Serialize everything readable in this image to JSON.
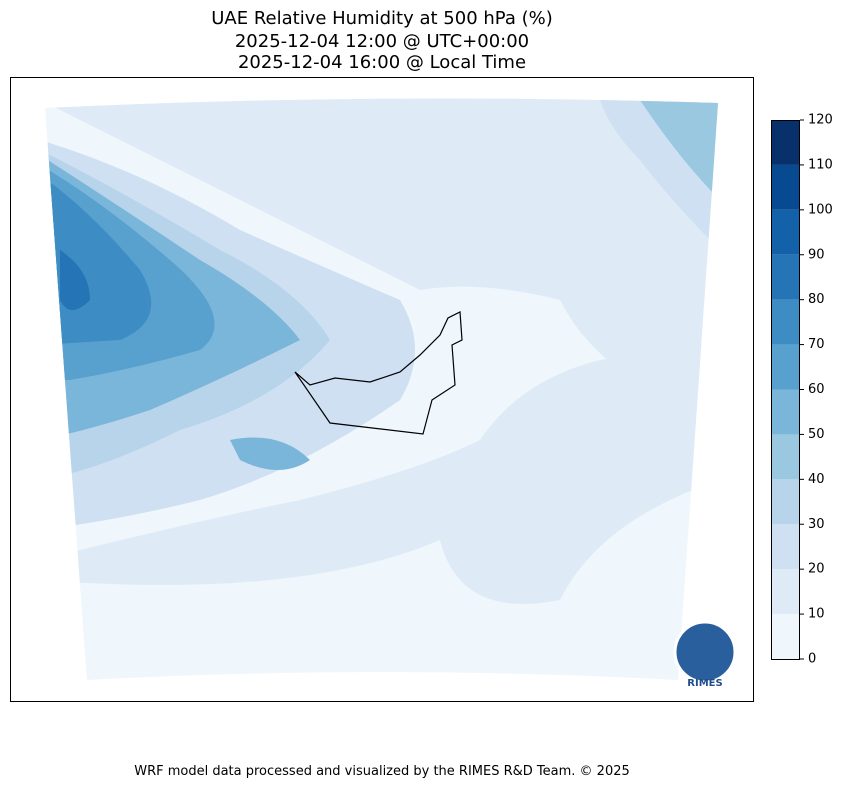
{
  "title": [
    "UAE Relative Humidity at 500 hPa (%)",
    "2025-12-04 12:00 @ UTC+00:00",
    "2025-12-04 16:00 @ Local Time"
  ],
  "colorbar": {
    "levels": [
      0,
      10,
      20,
      30,
      40,
      50,
      60,
      70,
      80,
      90,
      100,
      110,
      120
    ],
    "colors": [
      "#eff6fc",
      "#deebf7",
      "#cee0f2",
      "#b7d4ea",
      "#9ac8e0",
      "#7ab6d9",
      "#58a1ce",
      "#3d8dc4",
      "#2474b6",
      "#1361a9",
      "#084a91",
      "#08306b"
    ]
  },
  "logo": "RIMES",
  "footer": "WRF model data processed and visualized by the RIMES R&D Team. © 2025"
}
